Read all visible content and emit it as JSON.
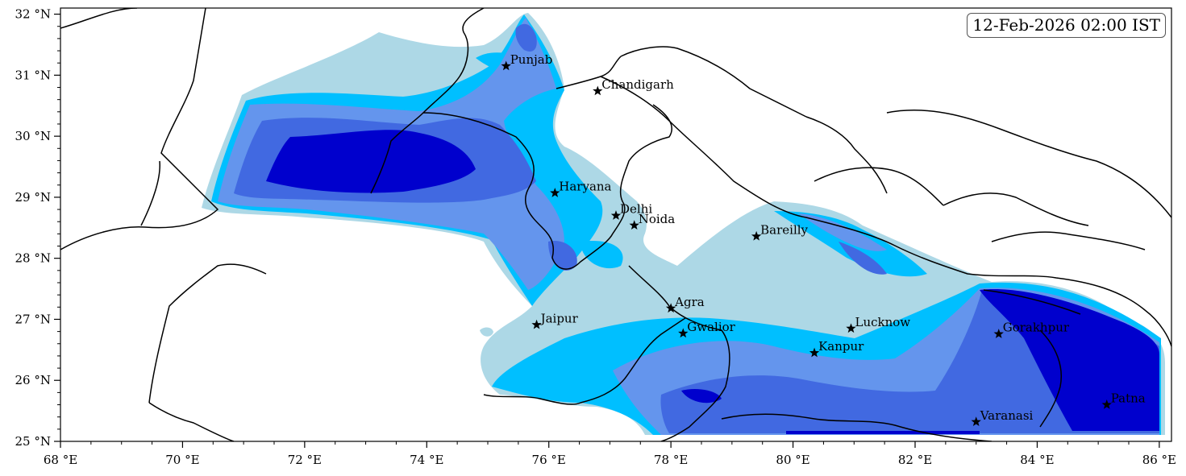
{
  "timestamp": "12-Feb-2026 02:00 IST",
  "axes": {
    "x_ticks": [
      {
        "value": 68,
        "label": "68 °E"
      },
      {
        "value": 70,
        "label": "70 °E"
      },
      {
        "value": 72,
        "label": "72 °E"
      },
      {
        "value": 74,
        "label": "74 °E"
      },
      {
        "value": 76,
        "label": "76 °E"
      },
      {
        "value": 78,
        "label": "78 °E"
      },
      {
        "value": 80,
        "label": "80 °E"
      },
      {
        "value": 82,
        "label": "82 °E"
      },
      {
        "value": 84,
        "label": "84 °E"
      },
      {
        "value": 86,
        "label": "86 °E"
      }
    ],
    "y_ticks": [
      {
        "value": 25,
        "label": "25 °N"
      },
      {
        "value": 26,
        "label": "26 °N"
      },
      {
        "value": 27,
        "label": "27 °N"
      },
      {
        "value": 28,
        "label": "28 °N"
      },
      {
        "value": 29,
        "label": "29 °N"
      },
      {
        "value": 30,
        "label": "30 °N"
      },
      {
        "value": 31,
        "label": "31 °N"
      },
      {
        "value": 32,
        "label": "32 °N"
      }
    ],
    "lon_range": [
      68,
      86.2
    ],
    "lat_range": [
      25,
      32.1
    ]
  },
  "cities": [
    {
      "name": "Punjab",
      "lon": 75.3,
      "lat": 31.15
    },
    {
      "name": "Chandigarh",
      "lon": 76.8,
      "lat": 30.74
    },
    {
      "name": "Haryana",
      "lon": 76.1,
      "lat": 29.07
    },
    {
      "name": "Delhi",
      "lon": 77.1,
      "lat": 28.7
    },
    {
      "name": "Noida",
      "lon": 77.4,
      "lat": 28.54
    },
    {
      "name": "Bareilly",
      "lon": 79.4,
      "lat": 28.36
    },
    {
      "name": "Agra",
      "lon": 78.0,
      "lat": 27.18
    },
    {
      "name": "Jaipur",
      "lon": 75.8,
      "lat": 26.91
    },
    {
      "name": "Gwalior",
      "lon": 78.2,
      "lat": 26.77
    },
    {
      "name": "Lucknow",
      "lon": 80.95,
      "lat": 26.85
    },
    {
      "name": "Gorakhpur",
      "lon": 83.37,
      "lat": 26.76
    },
    {
      "name": "Kanpur",
      "lon": 80.35,
      "lat": 26.45
    },
    {
      "name": "Varanasi",
      "lon": 83.0,
      "lat": 25.32
    },
    {
      "name": "Patna",
      "lon": 85.14,
      "lat": 25.6
    }
  ],
  "colors": {
    "level1": "#add8e6",
    "level2": "#00bfff",
    "level3": "#6495ed",
    "level4": "#4169e1",
    "level5": "#0000cd",
    "border": "#000000"
  }
}
